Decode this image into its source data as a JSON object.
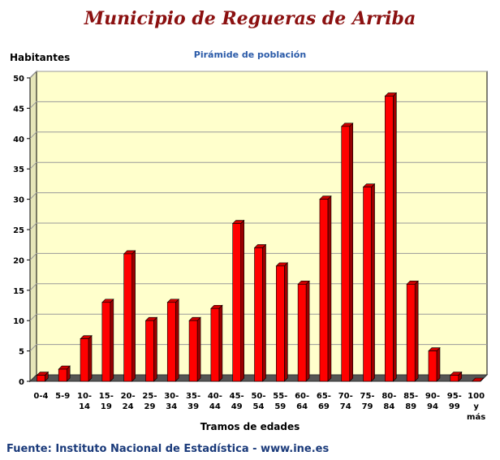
{
  "header": {
    "title": "Municipio de Regueras de Arriba",
    "subtitle": "Pirámide de población"
  },
  "footer": {
    "source": "Fuente: Instituto Nacional de Estadística - www.ine.es"
  },
  "colors": {
    "plot_background": "#ffffcc",
    "bar_front": "#ff0000",
    "bar_side": "#990000",
    "bar_top": "#cc0000",
    "floor": "#555555",
    "title": "#8b1010",
    "subtitle": "#2a5aa8"
  },
  "chart_data": {
    "type": "bar",
    "title": "Pirámide de población",
    "xlabel": "Tramos de edades",
    "ylabel": "Habitantes",
    "ylim": [
      0,
      50
    ],
    "yticks": [
      0,
      5,
      10,
      15,
      20,
      25,
      30,
      35,
      40,
      45,
      50
    ],
    "grid": true,
    "categories": [
      "0-4",
      "5-9",
      "10-14",
      "15-19",
      "20-24",
      "25-29",
      "30-34",
      "35-39",
      "40-44",
      "45-49",
      "50-54",
      "55-59",
      "60-64",
      "65-69",
      "70-74",
      "75-79",
      "80-84",
      "85-89",
      "90-94",
      "95-99",
      "100 y más"
    ],
    "tick_lines": [
      [
        "0-4"
      ],
      [
        "5-9"
      ],
      [
        "10-",
        "14"
      ],
      [
        "15-",
        "19"
      ],
      [
        "20-",
        "24"
      ],
      [
        "25-",
        "29"
      ],
      [
        "30-",
        "34"
      ],
      [
        "35-",
        "39"
      ],
      [
        "40-",
        "44"
      ],
      [
        "45-",
        "49"
      ],
      [
        "50-",
        "54"
      ],
      [
        "55-",
        "59"
      ],
      [
        "60-",
        "64"
      ],
      [
        "65-",
        "69"
      ],
      [
        "70-",
        "74"
      ],
      [
        "75-",
        "79"
      ],
      [
        "80-",
        "84"
      ],
      [
        "85-",
        "89"
      ],
      [
        "90-",
        "94"
      ],
      [
        "95-",
        "99"
      ],
      [
        "100",
        "y",
        "más"
      ]
    ],
    "values": [
      1,
      2,
      7,
      13,
      21,
      10,
      13,
      10,
      12,
      26,
      22,
      19,
      16,
      30,
      42,
      32,
      47,
      16,
      5,
      1,
      0
    ]
  }
}
